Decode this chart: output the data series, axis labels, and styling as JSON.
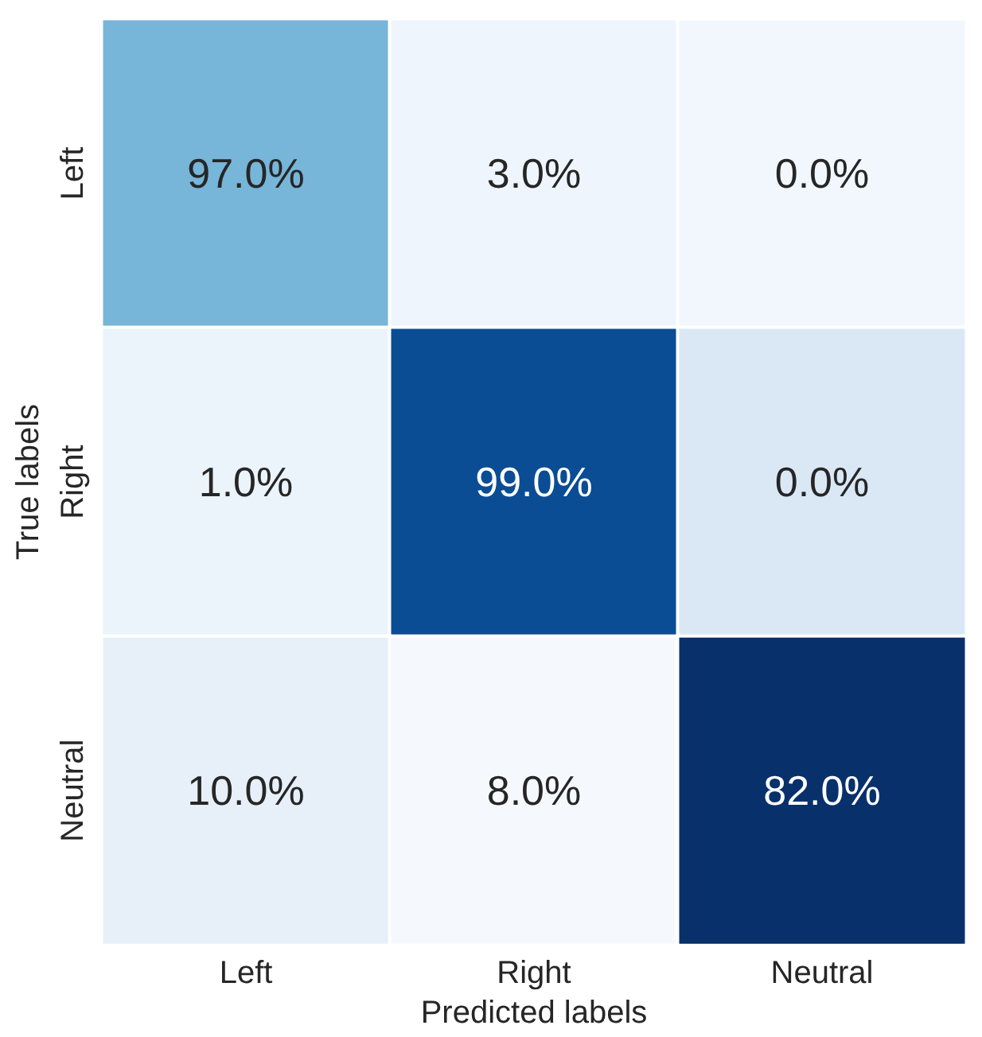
{
  "chart_data": {
    "type": "heatmap",
    "xlabel": "Predicted labels",
    "ylabel": "True labels",
    "categories": [
      "Left",
      "Right",
      "Neutral"
    ],
    "y_categories": [
      "Left",
      "Right",
      "Neutral"
    ],
    "cells": [
      [
        97.0,
        3.0,
        0.0
      ],
      [
        1.0,
        99.0,
        0.0
      ],
      [
        10.0,
        8.0,
        82.0
      ]
    ],
    "cell_labels": [
      [
        "97.0%",
        "3.0%",
        "0.0%"
      ],
      [
        "1.0%",
        "99.0%",
        "0.0%"
      ],
      [
        "10.0%",
        "8.0%",
        "82.0%"
      ]
    ],
    "colors": [
      [
        "#77b5d9",
        "#eff5fd",
        "#f2f7fe"
      ],
      [
        "#ebf3fb",
        "#0a4d95",
        "#dae8f6"
      ],
      [
        "#e7eff9",
        "#f5f9fe",
        "#08306b"
      ]
    ]
  }
}
